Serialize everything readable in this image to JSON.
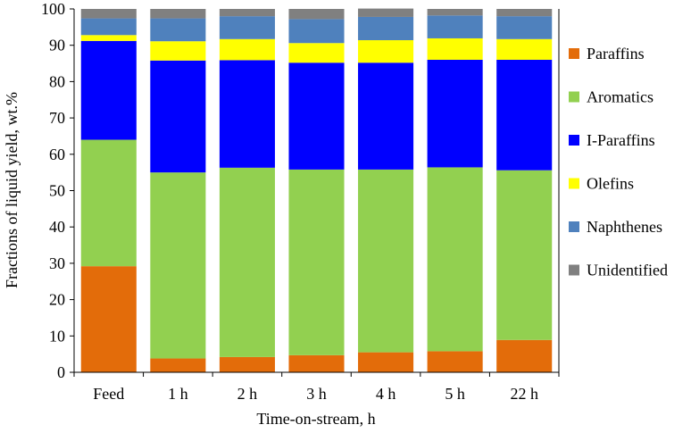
{
  "chart_data": {
    "type": "bar",
    "stacked": true,
    "title": "",
    "xlabel": "Time-on-stream, h",
    "ylabel": "Fractions of liquid yield,  wt.%",
    "ylim": [
      0,
      100
    ],
    "yticks": [
      0,
      10,
      20,
      30,
      40,
      50,
      60,
      70,
      80,
      90,
      100
    ],
    "grid": false,
    "legend_position": "right",
    "categories": [
      "Feed",
      "1 h",
      "2 h",
      "3 h",
      "4 h",
      "5 h",
      "22 h"
    ],
    "series": [
      {
        "name": "Paraffins",
        "color": "#e36c0a",
        "values": [
          29.2,
          3.8,
          4.2,
          4.7,
          5.5,
          5.8,
          8.9
        ]
      },
      {
        "name": "Aromatics",
        "color": "#92d050",
        "values": [
          34.8,
          51.2,
          52.1,
          51.1,
          50.3,
          50.6,
          46.7
        ]
      },
      {
        "name": "I-Paraffins",
        "color": "#0000ff",
        "values": [
          27.2,
          30.8,
          29.6,
          29.4,
          29.4,
          29.6,
          30.4
        ]
      },
      {
        "name": "Olefins",
        "color": "#ffff00",
        "values": [
          1.6,
          5.3,
          5.8,
          5.4,
          6.2,
          5.9,
          5.7
        ]
      },
      {
        "name": "Naphthenes",
        "color": "#4f81bd",
        "values": [
          4.6,
          6.3,
          6.3,
          6.6,
          6.4,
          6.3,
          6.3
        ]
      },
      {
        "name": "Unidentified",
        "color": "#808080",
        "values": [
          2.6,
          2.6,
          2.0,
          2.8,
          2.3,
          1.8,
          2.0
        ]
      }
    ]
  }
}
